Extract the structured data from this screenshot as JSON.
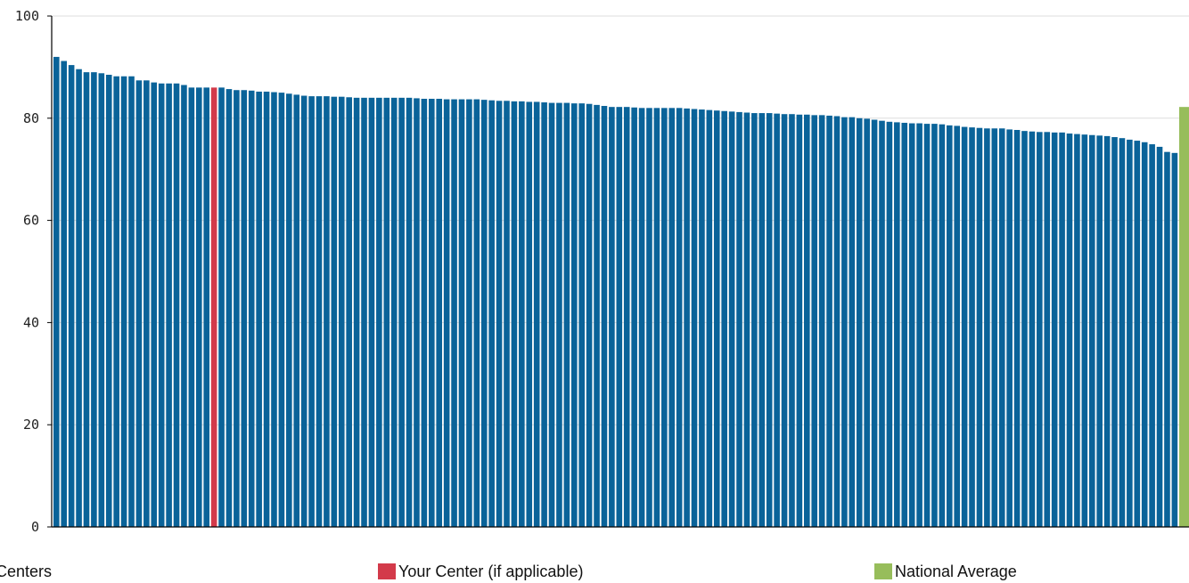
{
  "chart_data": {
    "type": "bar",
    "ylim": [
      0,
      100
    ],
    "yticks": [
      0,
      20,
      40,
      60,
      80,
      100
    ],
    "grid": true,
    "legend_position": "bottom",
    "xlabel": "",
    "ylabel": "",
    "colors": {
      "centers": "#0a6399",
      "your_center": "#d33a4a",
      "national_average": "#97bd5b",
      "axis": "#000000",
      "grid": "#dddddd"
    },
    "series": [
      {
        "name": "re Centers",
        "values": [
          92.0,
          91.2,
          90.4,
          89.6,
          89.0,
          89.0,
          88.8,
          88.5,
          88.2,
          88.2,
          88.2,
          87.4,
          87.4,
          87.0,
          86.8,
          86.8,
          86.8,
          86.5,
          86.0,
          86.0,
          86.0,
          86.0,
          86.0,
          85.7,
          85.5,
          85.5,
          85.4,
          85.2,
          85.2,
          85.1,
          85.0,
          84.8,
          84.6,
          84.4,
          84.3,
          84.3,
          84.3,
          84.2,
          84.2,
          84.1,
          84.0,
          84.0,
          84.0,
          84.0,
          84.0,
          84.0,
          84.0,
          84.0,
          83.9,
          83.8,
          83.8,
          83.8,
          83.7,
          83.7,
          83.7,
          83.7,
          83.7,
          83.6,
          83.5,
          83.4,
          83.4,
          83.3,
          83.3,
          83.2,
          83.2,
          83.1,
          83.0,
          83.0,
          83.0,
          82.9,
          82.9,
          82.8,
          82.6,
          82.4,
          82.2,
          82.2,
          82.2,
          82.1,
          82.0,
          82.0,
          82.0,
          82.0,
          82.0,
          82.0,
          81.9,
          81.8,
          81.7,
          81.6,
          81.5,
          81.4,
          81.3,
          81.2,
          81.1,
          81.0,
          81.0,
          81.0,
          80.9,
          80.8,
          80.8,
          80.7,
          80.7,
          80.6,
          80.6,
          80.5,
          80.4,
          80.2,
          80.2,
          80.0,
          79.9,
          79.7,
          79.5,
          79.3,
          79.2,
          79.1,
          79.0,
          79.0,
          78.9,
          78.9,
          78.8,
          78.6,
          78.5,
          78.3,
          78.2,
          78.1,
          78.0,
          78.0,
          78.0,
          77.8,
          77.7,
          77.5,
          77.4,
          77.3,
          77.3,
          77.2,
          77.2,
          77.0,
          76.9,
          76.8,
          76.7,
          76.6,
          76.5,
          76.3,
          76.1,
          75.8,
          75.6,
          75.3,
          74.9,
          74.4,
          73.4,
          73.2
        ]
      },
      {
        "name": "Your Center (if applicable)",
        "index": 21,
        "value": 86.0
      },
      {
        "name": "National Average",
        "value": 82.2
      }
    ]
  }
}
